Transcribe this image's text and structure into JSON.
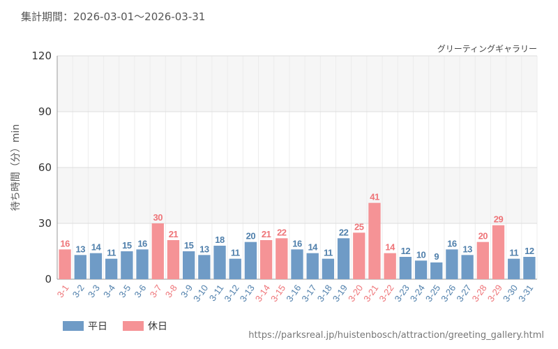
{
  "header": {
    "period": "集計期間：2026-03-01～2026-03-31"
  },
  "footer": {
    "source": "https://parksreal.jp/huistenbosch/attraction/greeting_gallery.html"
  },
  "colors": {
    "weekday": "#6f9bc6",
    "holiday": "#f59396",
    "weekday_label": "#4f7fab",
    "holiday_label": "#ee7478"
  },
  "chart_data": {
    "type": "bar",
    "title": "グリーティングギャラリー",
    "xlabel": "",
    "ylabel": "待ち時間（分）min",
    "ylim": [
      0,
      120
    ],
    "yticks": [
      0,
      30,
      60,
      90,
      120
    ],
    "grid": true,
    "legend_position": "bottom-left",
    "categories": [
      "3-1",
      "3-2",
      "3-3",
      "3-4",
      "3-5",
      "3-6",
      "3-7",
      "3-8",
      "3-9",
      "3-10",
      "3-11",
      "3-12",
      "3-13",
      "3-14",
      "3-15",
      "3-16",
      "3-17",
      "3-18",
      "3-19",
      "3-20",
      "3-21",
      "3-22",
      "3-23",
      "3-24",
      "3-25",
      "3-26",
      "3-27",
      "3-28",
      "3-29",
      "3-30",
      "3-31"
    ],
    "values": [
      16,
      13,
      14,
      11,
      15,
      16,
      30,
      21,
      15,
      13,
      18,
      11,
      20,
      21,
      22,
      16,
      14,
      11,
      22,
      25,
      41,
      14,
      12,
      10,
      9,
      16,
      13,
      20,
      29,
      11,
      12
    ],
    "day_type": [
      "holiday",
      "weekday",
      "weekday",
      "weekday",
      "weekday",
      "weekday",
      "holiday",
      "holiday",
      "weekday",
      "weekday",
      "weekday",
      "weekday",
      "weekday",
      "holiday",
      "holiday",
      "weekday",
      "weekday",
      "weekday",
      "weekday",
      "holiday",
      "holiday",
      "holiday",
      "weekday",
      "weekday",
      "weekday",
      "weekday",
      "weekday",
      "holiday",
      "holiday",
      "weekday",
      "weekday"
    ],
    "legend": [
      {
        "key": "weekday",
        "label": "平日"
      },
      {
        "key": "holiday",
        "label": "休日"
      }
    ]
  }
}
